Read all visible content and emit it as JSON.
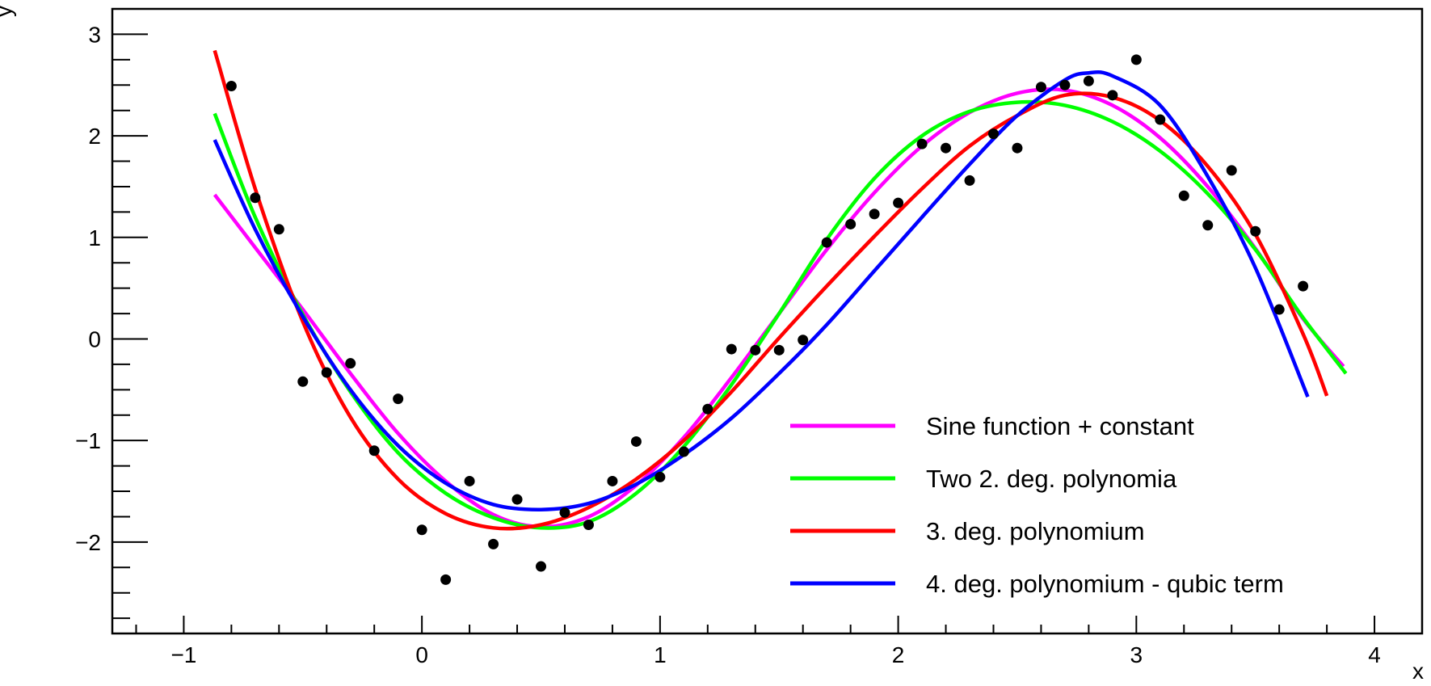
{
  "chart_data": {
    "type": "scatter",
    "title": "",
    "xlabel": "x",
    "ylabel": "y",
    "xlim": [
      -1.3,
      4.2
    ],
    "ylim": [
      -2.9,
      3.25
    ],
    "grid": false,
    "legend_position": "bottom-right",
    "x_ticks": [
      {
        "value": -1,
        "label": "−1"
      },
      {
        "value": 0,
        "label": "0"
      },
      {
        "value": 1,
        "label": "1"
      },
      {
        "value": 2,
        "label": "2"
      },
      {
        "value": 3,
        "label": "3"
      },
      {
        "value": 4,
        "label": "4"
      }
    ],
    "y_ticks": [
      {
        "value": -2,
        "label": "−2"
      },
      {
        "value": -1,
        "label": "−1"
      },
      {
        "value": 0,
        "label": "0"
      },
      {
        "value": 1,
        "label": "1"
      },
      {
        "value": 2,
        "label": "2"
      },
      {
        "value": 3,
        "label": "3"
      }
    ],
    "points": {
      "x": [
        -0.8,
        -0.7,
        -0.6,
        -0.5,
        -0.4,
        -0.3,
        -0.2,
        -0.1,
        0.0,
        0.1,
        0.2,
        0.3,
        0.4,
        0.5,
        0.6,
        0.7,
        0.8,
        0.9,
        1.0,
        1.1,
        1.2,
        1.3,
        1.4,
        1.5,
        1.6,
        1.7,
        1.8,
        1.9,
        2.0,
        2.1,
        2.2,
        2.3,
        2.4,
        2.5,
        2.6,
        2.7,
        2.8,
        2.9,
        3.0,
        3.1,
        3.2,
        3.3,
        3.4,
        3.5,
        3.6,
        3.7
      ],
      "y": [
        2.49,
        1.39,
        1.08,
        -0.42,
        -0.33,
        -0.24,
        -1.1,
        -0.59,
        -1.88,
        -2.37,
        -1.4,
        -2.02,
        -1.58,
        -2.24,
        -1.71,
        -1.83,
        -1.4,
        -1.01,
        -1.36,
        -1.11,
        -0.69,
        -0.1,
        -0.11,
        -0.11,
        -0.01,
        0.95,
        1.13,
        1.23,
        1.34,
        1.92,
        1.88,
        1.56,
        2.02,
        1.88,
        2.48,
        2.5,
        2.54,
        2.4,
        2.75,
        2.16,
        1.41,
        1.12,
        1.66,
        1.06,
        0.29,
        0.52
      ],
      "color": "#000000"
    },
    "series": [
      {
        "name": "Sine function + constant",
        "color": "#ff00ff",
        "x": [
          -0.87,
          -0.7,
          -0.5,
          -0.3,
          -0.1,
          0.1,
          0.3,
          0.5,
          0.7,
          0.9,
          1.1,
          1.3,
          1.5,
          1.7,
          1.9,
          2.1,
          2.3,
          2.5,
          2.7,
          2.9,
          3.1,
          3.3,
          3.5,
          3.7,
          3.87
        ],
        "y": [
          1.42,
          0.9,
          0.29,
          -0.34,
          -0.93,
          -1.4,
          -1.73,
          -1.85,
          -1.75,
          -1.44,
          -0.97,
          -0.38,
          0.25,
          0.88,
          1.44,
          1.9,
          2.23,
          2.42,
          2.45,
          2.3,
          1.98,
          1.5,
          0.89,
          0.2,
          -0.27
        ]
      },
      {
        "name": "Two 2. deg. polynomia",
        "color": "#00ff00",
        "x": [
          -0.87,
          -0.7,
          -0.5,
          -0.3,
          -0.1,
          0.1,
          0.3,
          0.5,
          0.7,
          0.9,
          1.1,
          1.3,
          1.5,
          1.7,
          1.9,
          2.1,
          2.3,
          2.5,
          2.7,
          2.9,
          3.1,
          3.3,
          3.5,
          3.7,
          3.88
        ],
        "y": [
          2.22,
          1.2,
          0.24,
          -0.52,
          -1.12,
          -1.52,
          -1.76,
          -1.86,
          -1.8,
          -1.52,
          -1.06,
          -0.45,
          0.25,
          0.98,
          1.58,
          2.0,
          2.24,
          2.33,
          2.3,
          2.14,
          1.85,
          1.43,
          0.88,
          0.21,
          -0.34
        ]
      },
      {
        "name": "3. deg. polynomium",
        "color": "#ff0000",
        "x": [
          -0.87,
          -0.7,
          -0.5,
          -0.3,
          -0.1,
          0.1,
          0.3,
          0.5,
          0.7,
          0.9,
          1.1,
          1.3,
          1.5,
          1.7,
          1.9,
          2.1,
          2.3,
          2.5,
          2.7,
          2.9,
          3.1,
          3.3,
          3.5,
          3.7,
          3.8
        ],
        "y": [
          2.84,
          1.48,
          0.17,
          -0.77,
          -1.38,
          -1.72,
          -1.86,
          -1.83,
          -1.66,
          -1.38,
          -1.0,
          -0.52,
          0.01,
          0.52,
          1.01,
          1.48,
          1.9,
          2.2,
          2.4,
          2.38,
          2.15,
          1.7,
          1.03,
          0.05,
          -0.56
        ]
      },
      {
        "name": "4. deg. polynomium - qubic term",
        "color": "#0000ff",
        "x": [
          -0.87,
          -0.7,
          -0.5,
          -0.3,
          -0.1,
          0.1,
          0.3,
          0.5,
          0.7,
          0.9,
          1.1,
          1.3,
          1.5,
          1.7,
          1.9,
          2.1,
          2.3,
          2.5,
          2.7,
          2.8,
          2.9,
          3.1,
          3.3,
          3.5,
          3.72
        ],
        "y": [
          1.96,
          1.08,
          0.22,
          -0.5,
          -1.05,
          -1.42,
          -1.63,
          -1.68,
          -1.62,
          -1.43,
          -1.14,
          -0.78,
          -0.34,
          0.14,
          0.67,
          1.2,
          1.72,
          2.2,
          2.55,
          2.62,
          2.59,
          2.3,
          1.6,
          0.7,
          -0.57
        ]
      }
    ]
  }
}
